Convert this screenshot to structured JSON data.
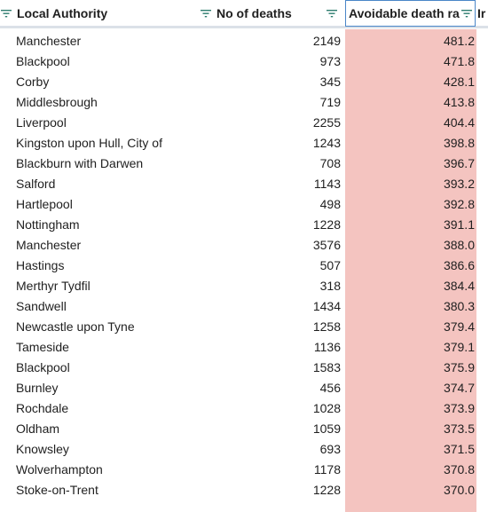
{
  "header": {
    "col_authority": "Local Authority",
    "col_deaths": "No of deaths",
    "col_rate": "Avoidable death ra",
    "col_next": "Ir"
  },
  "rows": [
    {
      "name": "Manchester",
      "deaths": "2149",
      "rate": "481.2"
    },
    {
      "name": "Blackpool",
      "deaths": "973",
      "rate": "471.8"
    },
    {
      "name": "Corby",
      "deaths": "345",
      "rate": "428.1"
    },
    {
      "name": "Middlesbrough",
      "deaths": "719",
      "rate": "413.8"
    },
    {
      "name": "Liverpool",
      "deaths": "2255",
      "rate": "404.4"
    },
    {
      "name": "Kingston upon Hull, City of",
      "deaths": "1243",
      "rate": "398.8"
    },
    {
      "name": "Blackburn with Darwen",
      "deaths": "708",
      "rate": "396.7"
    },
    {
      "name": "Salford",
      "deaths": "1143",
      "rate": "393.2"
    },
    {
      "name": "Hartlepool",
      "deaths": "498",
      "rate": "392.8"
    },
    {
      "name": "Nottingham",
      "deaths": "1228",
      "rate": "391.1"
    },
    {
      "name": "Manchester",
      "deaths": "3576",
      "rate": "388.0"
    },
    {
      "name": "Hastings",
      "deaths": "507",
      "rate": "386.6"
    },
    {
      "name": "Merthyr Tydfil",
      "deaths": "318",
      "rate": "384.4"
    },
    {
      "name": "Sandwell",
      "deaths": "1434",
      "rate": "380.3"
    },
    {
      "name": "Newcastle upon Tyne",
      "deaths": "1258",
      "rate": "379.4"
    },
    {
      "name": "Tameside",
      "deaths": "1136",
      "rate": "379.1"
    },
    {
      "name": "Blackpool",
      "deaths": "1583",
      "rate": "375.9"
    },
    {
      "name": "Burnley",
      "deaths": "456",
      "rate": "374.7"
    },
    {
      "name": "Rochdale",
      "deaths": "1028",
      "rate": "373.9"
    },
    {
      "name": "Oldham",
      "deaths": "1059",
      "rate": "373.5"
    },
    {
      "name": "Knowsley",
      "deaths": "693",
      "rate": "371.5"
    },
    {
      "name": "Wolverhampton",
      "deaths": "1178",
      "rate": "370.8"
    },
    {
      "name": "Stoke-on-Trent",
      "deaths": "1228",
      "rate": "370.0"
    }
  ],
  "colors": {
    "highlight_fill": "#f4c4c0",
    "header_border": "#dbe1e8",
    "selection_border": "#4a86c8",
    "filter_icon": "#2e7d6f"
  }
}
